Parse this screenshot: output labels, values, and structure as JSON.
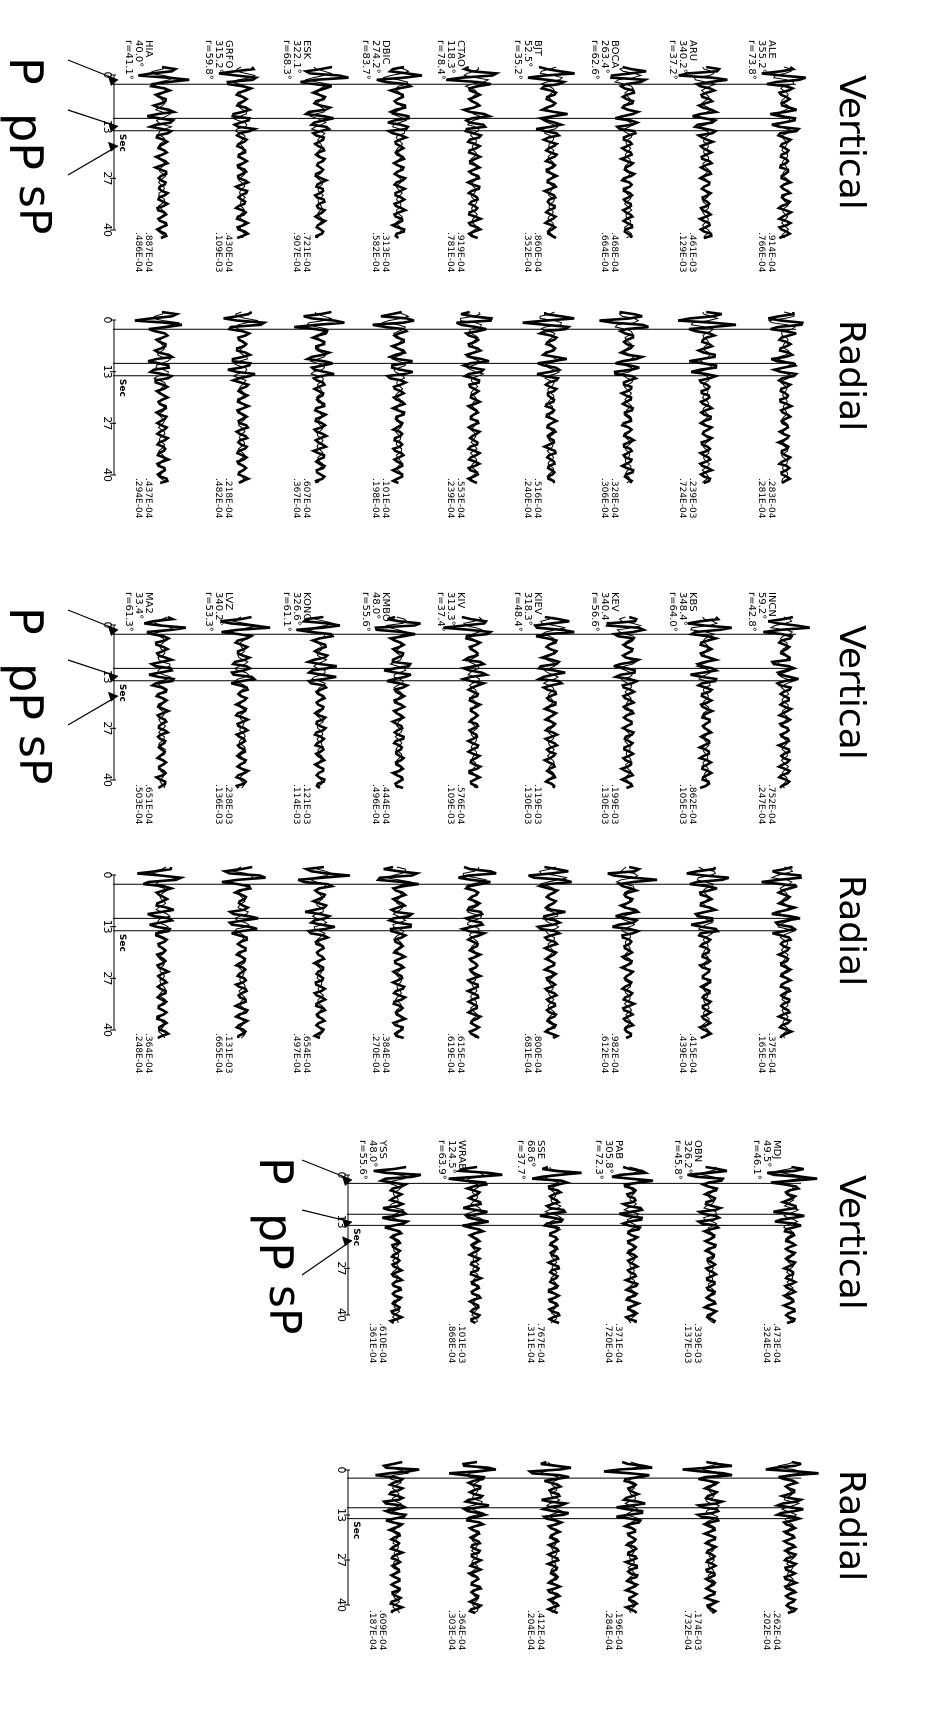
{
  "blocks": [
    {
      "phases": [
        "P",
        "pP",
        "sP"
      ],
      "panels": [
        "Vertical",
        "Radial"
      ],
      "stations": [
        {
          "name": "HIA",
          "az": "40.0°",
          "dist": "r=41.1°",
          "v_amp": [
            ".887E-04",
            ".486E-04"
          ],
          "r_amp": [
            ".437E-04",
            ".294E-04"
          ]
        },
        {
          "name": "GRFO",
          "az": "315.2°",
          "dist": "r=59.8°",
          "v_amp": [
            ".430E-04",
            ".109E-03"
          ],
          "r_amp": [
            ".218E-04",
            ".482E-04"
          ]
        },
        {
          "name": "ESK",
          "az": "322.1°",
          "dist": "r=68.3°",
          "v_amp": [
            ".721E-04",
            ".907E-04"
          ],
          "r_amp": [
            ".607E-04",
            ".367E-04"
          ]
        },
        {
          "name": "DBIC",
          "az": "274.2°",
          "dist": "r=83.7°",
          "v_amp": [
            ".313E-04",
            ".582E-04"
          ],
          "r_amp": [
            ".101E-04",
            ".198E-04"
          ]
        },
        {
          "name": "CTAO",
          "az": "118.3°",
          "dist": "r=78.4°",
          "v_amp": [
            ".919E-04",
            ".781E-04"
          ],
          "r_amp": [
            ".553E-04",
            ".239E-04"
          ]
        },
        {
          "name": "BJT",
          "az": "52.5°",
          "dist": "r=35.2°",
          "v_amp": [
            ".860E-04",
            ".352E-04"
          ],
          "r_amp": [
            ".516E-04",
            ".240E-04"
          ]
        },
        {
          "name": "BOCA",
          "az": "263.4°",
          "dist": "r=62.6°",
          "v_amp": [
            ".468E-04",
            ".664E-04"
          ],
          "r_amp": [
            ".328E-04",
            ".306E-04"
          ]
        },
        {
          "name": "ARU",
          "az": "340.2°",
          "dist": "r=37.2°",
          "v_amp": [
            ".461E-03",
            ".129E-03"
          ],
          "r_amp": [
            ".239E-03",
            ".724E-04"
          ]
        },
        {
          "name": "ALE",
          "az": "355.2°",
          "dist": "r=73.8°",
          "v_amp": [
            ".914E-04",
            ".766E-04"
          ],
          "r_amp": [
            ".283E-04",
            ".281E-04"
          ]
        }
      ]
    },
    {
      "phases": [
        "P",
        "pP",
        "sP"
      ],
      "panels": [
        "Vertical",
        "Radial"
      ],
      "stations": [
        {
          "name": "MA2",
          "az": "33.4°",
          "dist": "r=61.3°",
          "v_amp": [
            ".651E-04",
            ".503E-04"
          ],
          "r_amp": [
            ".364E-04",
            ".248E-04"
          ]
        },
        {
          "name": "LVZ",
          "az": "340.2°",
          "dist": "r=53.3°",
          "v_amp": [
            ".238E-03",
            ".136E-03"
          ],
          "r_amp": [
            ".131E-03",
            ".665E-04"
          ]
        },
        {
          "name": "KONO",
          "az": "326.6°",
          "dist": "r=61.1°",
          "v_amp": [
            ".121E-03",
            ".114E-03"
          ],
          "r_amp": [
            ".654E-04",
            ".497E-04"
          ]
        },
        {
          "name": "KMBO",
          "az": "48.0°",
          "dist": "r=55.6°",
          "v_amp": [
            ".444E-04",
            ".496E-04"
          ],
          "r_amp": [
            ".384E-04",
            ".270E-04"
          ]
        },
        {
          "name": "KIV",
          "az": "313.3°",
          "dist": "r=37.4°",
          "v_amp": [
            ".576E-04",
            ".109E-03"
          ],
          "r_amp": [
            ".615E-04",
            ".619E-04"
          ]
        },
        {
          "name": "KIEV",
          "az": "318.3°",
          "dist": "r=48.4°",
          "v_amp": [
            ".119E-03",
            ".130E-03"
          ],
          "r_amp": [
            ".800E-04",
            ".681E-04"
          ]
        },
        {
          "name": "KEV",
          "az": "340.4°",
          "dist": "r=56.6°",
          "v_amp": [
            ".199E-03",
            ".130E-03"
          ],
          "r_amp": [
            ".982E-04",
            ".612E-04"
          ]
        },
        {
          "name": "KBS",
          "az": "348.4°",
          "dist": "r=64.0°",
          "v_amp": [
            ".862E-04",
            ".105E-03"
          ],
          "r_amp": [
            ".415E-04",
            ".439E-04"
          ]
        },
        {
          "name": "INCN",
          "az": "59.2°",
          "dist": "r=42.8°",
          "v_amp": [
            ".752E-04",
            ".247E-04"
          ],
          "r_amp": [
            ".375E-04",
            ".165E-04"
          ]
        }
      ]
    },
    {
      "phases": [
        "P",
        "pP",
        "sP"
      ],
      "panels": [
        "Vertical",
        "Radial"
      ],
      "stations": [
        {
          "name": "YSS",
          "az": "48.0°",
          "dist": "r=55.6°",
          "v_amp": [
            ".610E-04",
            ".361E-04"
          ],
          "r_amp": [
            ".609E-04",
            ".187E-04"
          ]
        },
        {
          "name": "WRAB",
          "az": "124.5°",
          "dist": "r=63.9°",
          "v_amp": [
            ".101E-03",
            ".868E-04"
          ],
          "r_amp": [
            ".364E-04",
            ".303E-04"
          ]
        },
        {
          "name": "SSE",
          "az": "68.6°",
          "dist": "r=37.7°",
          "v_amp": [
            ".767E-04",
            ".311E-04"
          ],
          "r_amp": [
            ".412E-04",
            ".204E-04"
          ]
        },
        {
          "name": "PAB",
          "az": "305.8°",
          "dist": "r=72.3°",
          "v_amp": [
            ".371E-04",
            ".720E-04"
          ],
          "r_amp": [
            ".196E-04",
            ".284E-04"
          ]
        },
        {
          "name": "OBN",
          "az": "326.2°",
          "dist": "r=45.8°",
          "v_amp": [
            ".339E-03",
            ".137E-03"
          ],
          "r_amp": [
            ".174E-03",
            ".732E-04"
          ]
        },
        {
          "name": "MDJ",
          "az": "49.5°",
          "dist": "r=46.1°",
          "v_amp": [
            ".473E-04",
            ".324E-04"
          ],
          "r_amp": [
            ".262E-04",
            ".202E-04"
          ]
        }
      ]
    }
  ],
  "time_axis": {
    "ticks": [
      "0",
      "13",
      "27",
      "40"
    ],
    "unit": "Sec"
  }
}
